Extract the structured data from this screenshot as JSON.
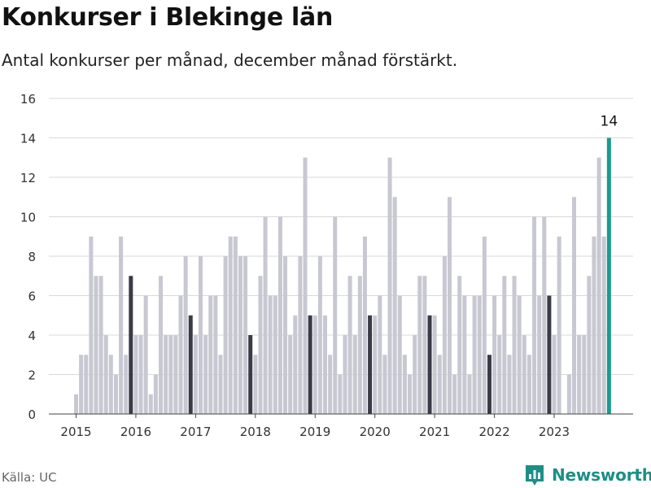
{
  "header": {
    "title": "Konkurser i Blekinge län",
    "subtitle": "Antal konkurser per månad, december månad förstärkt."
  },
  "footer": {
    "source": "Källa: UC",
    "brand": "Newsworthy",
    "brand_icon": "bar-chart-logo-icon"
  },
  "colors": {
    "bar": "#c8c8d2",
    "december": "#3a3a48",
    "highlight": "#1a9b8e",
    "grid": "#d9d9d9"
  },
  "chart_data": {
    "type": "bar",
    "title": "Konkurser i Blekinge län",
    "subtitle": "Antal konkurser per månad, december månad förstärkt.",
    "xlabel": "",
    "ylabel": "",
    "ylim": [
      0,
      16
    ],
    "yticks": [
      0,
      2,
      4,
      6,
      8,
      10,
      12,
      14,
      16
    ],
    "xticks": [
      "2015",
      "2016",
      "2017",
      "2018",
      "2019",
      "2020",
      "2021",
      "2022",
      "2023"
    ],
    "grid": true,
    "start": "2015-01",
    "end": "2023-12",
    "values": [
      1,
      3,
      3,
      9,
      7,
      7,
      4,
      3,
      2,
      9,
      3,
      7,
      4,
      4,
      6,
      1,
      2,
      7,
      4,
      4,
      4,
      6,
      8,
      5,
      4,
      8,
      4,
      6,
      6,
      3,
      8,
      9,
      9,
      8,
      8,
      4,
      3,
      7,
      10,
      6,
      6,
      10,
      8,
      4,
      5,
      8,
      13,
      5,
      5,
      8,
      5,
      3,
      10,
      2,
      4,
      7,
      4,
      7,
      9,
      5,
      5,
      6,
      3,
      13,
      11,
      6,
      3,
      2,
      4,
      7,
      7,
      5,
      5,
      3,
      8,
      11,
      2,
      7,
      6,
      2,
      6,
      6,
      9,
      3,
      6,
      4,
      7,
      3,
      7,
      6,
      4,
      3,
      10,
      6,
      10,
      6,
      4,
      9,
      0,
      2,
      11,
      4,
      4,
      7,
      9,
      13,
      9,
      14
    ],
    "annotation": {
      "month": "2023-12",
      "value": 14,
      "label": "14"
    }
  }
}
